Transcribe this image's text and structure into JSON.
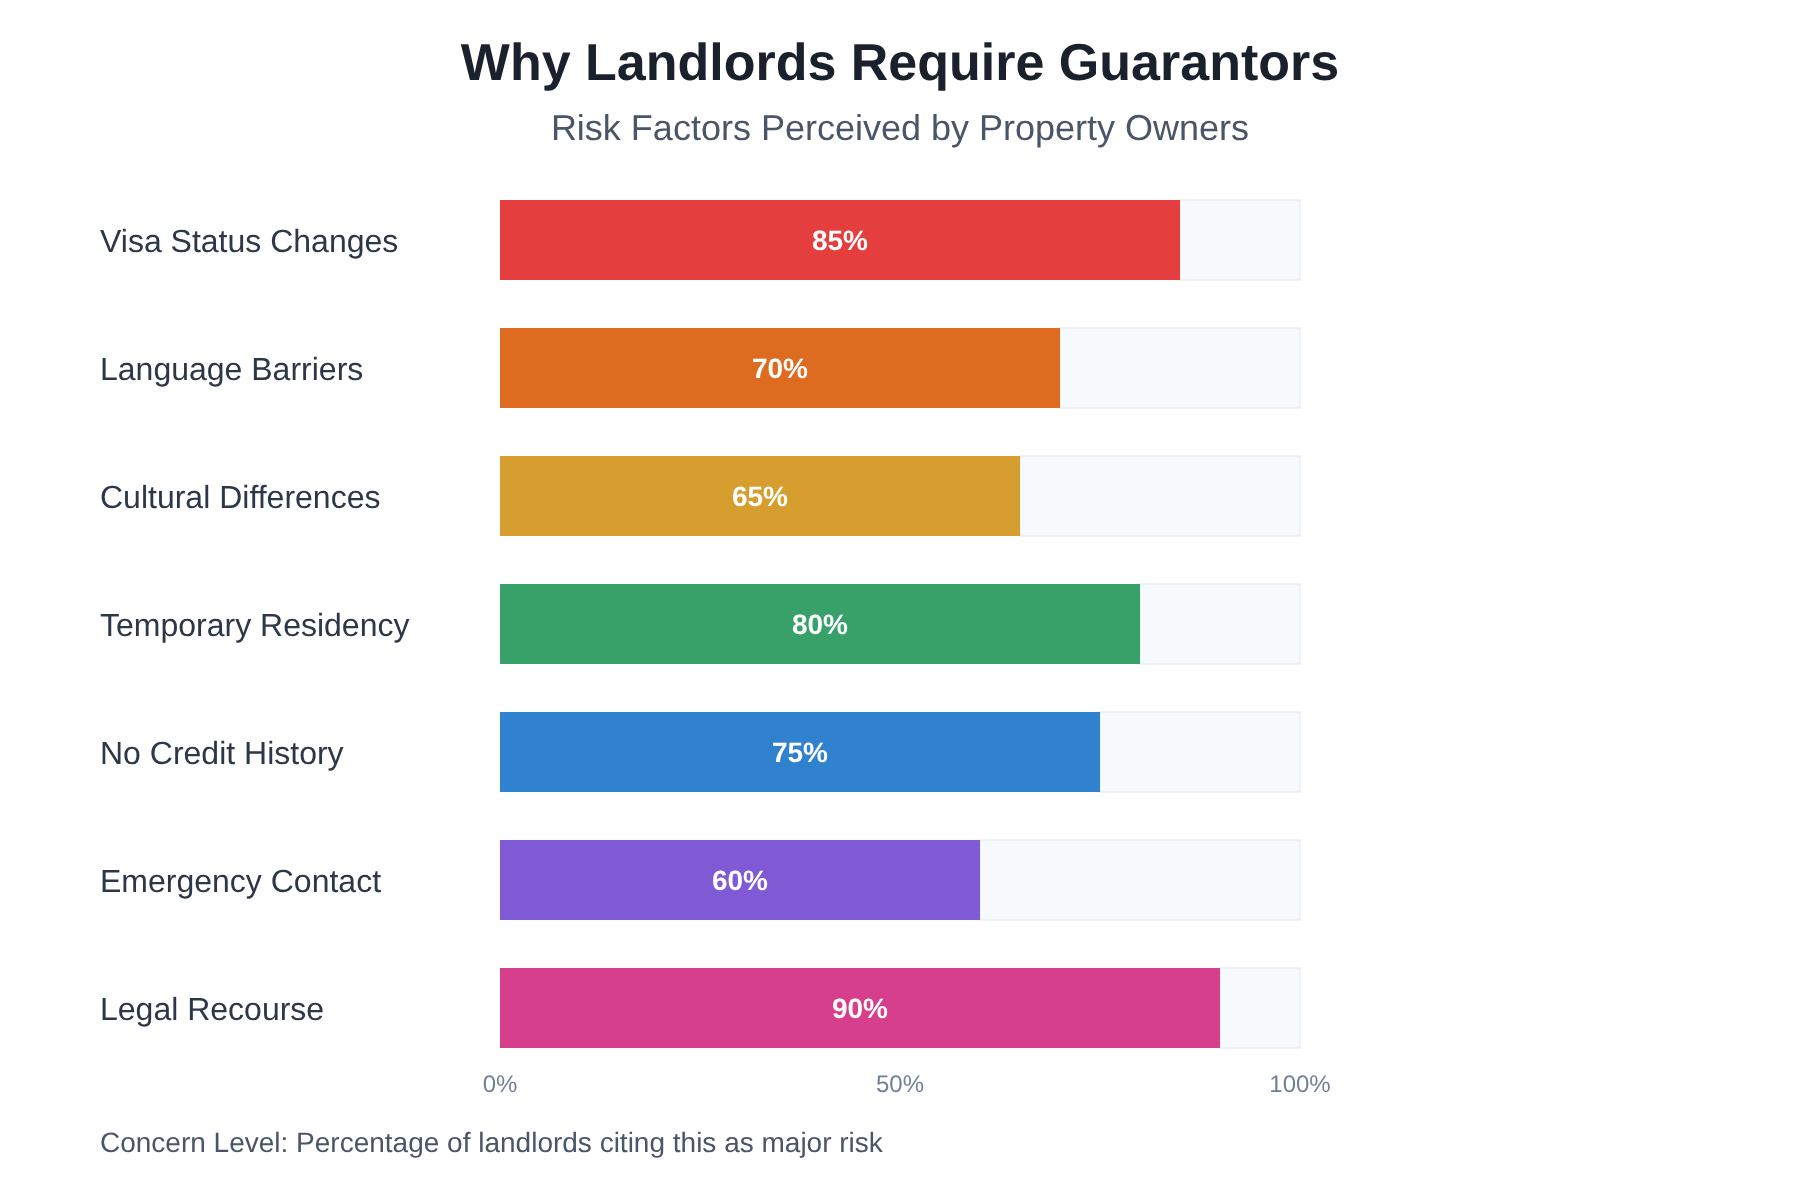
{
  "chart_data": {
    "type": "bar",
    "orientation": "horizontal",
    "title": "Why Landlords Require Guarantors",
    "subtitle": "Risk Factors Perceived by Property Owners",
    "xlabel": "Concern Level: Percentage of landlords citing this as major risk",
    "categories": [
      "Visa Status Changes",
      "Language Barriers",
      "Cultural Differences",
      "Temporary Residency",
      "No Credit History",
      "Emergency Contact",
      "Legal Recourse"
    ],
    "values": [
      85,
      70,
      65,
      80,
      75,
      60,
      90
    ],
    "colors": [
      "#e53e3e",
      "#dd6b20",
      "#d69e2e",
      "#38a169",
      "#3182ce",
      "#805ad5",
      "#d53f8c"
    ],
    "value_labels": [
      "85%",
      "70%",
      "65%",
      "80%",
      "75%",
      "60%",
      "90%"
    ],
    "xlim": [
      0,
      100
    ],
    "xticks": [
      {
        "value": 0,
        "label": "0%"
      },
      {
        "value": 50,
        "label": "50%"
      },
      {
        "value": 100,
        "label": "100%"
      }
    ],
    "grid": false
  }
}
